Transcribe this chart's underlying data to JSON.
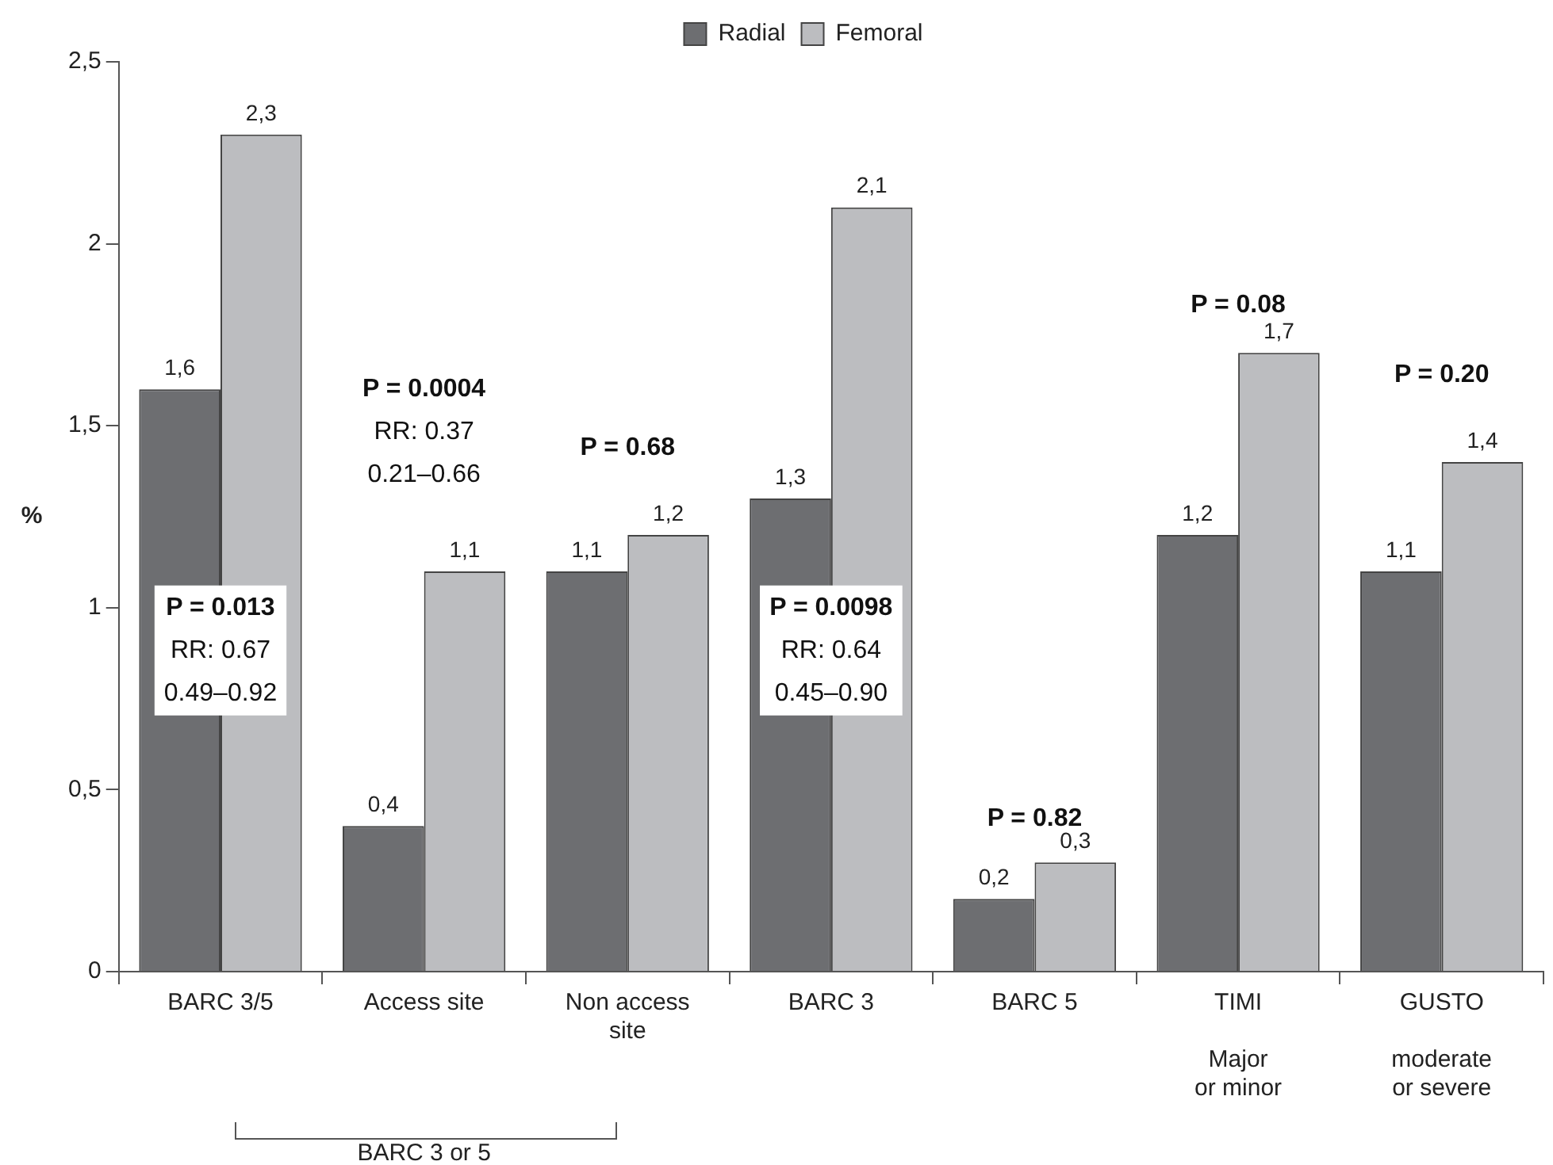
{
  "chart_data": {
    "type": "bar",
    "ylabel": "%",
    "categories": [
      "BARC 3/5",
      "Access site",
      "Non access\nsite",
      "BARC 3",
      "BARC 5",
      "TIMI\n\nMajor\nor minor",
      "GUSTO\n\nmoderate\nor severe"
    ],
    "series": [
      {
        "name": "Radial",
        "color": "#6d6e71",
        "values": [
          1.6,
          0.4,
          1.1,
          1.3,
          0.2,
          1.2,
          1.1
        ],
        "value_labels": [
          "1,6",
          "0,4",
          "1,1",
          "1,3",
          "0,2",
          "1,2",
          "1,1"
        ]
      },
      {
        "name": "Femoral",
        "color": "#bcbdc0",
        "values": [
          2.3,
          1.1,
          1.2,
          2.1,
          0.3,
          1.7,
          1.4
        ],
        "value_labels": [
          "2,3",
          "1,1",
          "1,2",
          "2,1",
          "0,3",
          "1,7",
          "1,4"
        ]
      }
    ],
    "ylim": [
      0,
      2.5
    ],
    "yticks": [
      {
        "value": 0,
        "label": "0"
      },
      {
        "value": 0.5,
        "label": "0,5"
      },
      {
        "value": 1,
        "label": "1"
      },
      {
        "value": 1.5,
        "label": "1,5"
      },
      {
        "value": 2,
        "label": "2"
      },
      {
        "value": 2.5,
        "label": "2,5"
      }
    ],
    "grid": false,
    "legend": "top",
    "annotations": [
      "P = 0.013\nRR: 0.67\n0.49–0.92",
      "P = 0.0004\nRR: 0.37\n0.21–0.66",
      "P = 0.68",
      "P = 0.0098\nRR: 0.64\n0.45–0.90",
      "P = 0.82",
      "P = 0.08",
      "P = 0.20",
      "BARC 3 or 5"
    ]
  }
}
